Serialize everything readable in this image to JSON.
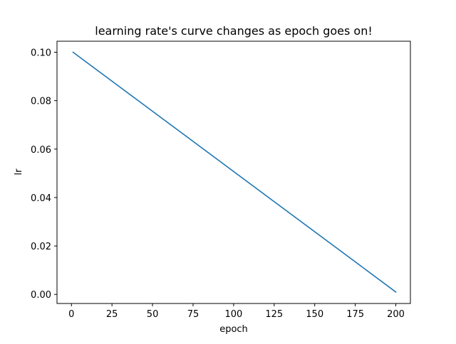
{
  "chart_data": {
    "type": "line",
    "title": "learning rate's curve changes as epoch goes on!",
    "xlabel": "epoch",
    "ylabel": "lr",
    "xlim": [
      -8.9,
      209
    ],
    "ylim": [
      -0.00375,
      0.10455
    ],
    "xticks": [
      "0",
      "25",
      "50",
      "75",
      "100",
      "125",
      "150",
      "175",
      "200"
    ],
    "xtick_values": [
      0,
      25,
      50,
      75,
      100,
      125,
      150,
      175,
      200
    ],
    "yticks": [
      "0.00",
      "0.02",
      "0.04",
      "0.06",
      "0.08",
      "0.10"
    ],
    "ytick_values": [
      0,
      0.02,
      0.04,
      0.06,
      0.08,
      0.1
    ],
    "grid": false,
    "series": [
      {
        "color": "#1f77b4",
        "x": [
          1,
          200
        ],
        "y": [
          0.1,
          0.001
        ]
      }
    ]
  }
}
